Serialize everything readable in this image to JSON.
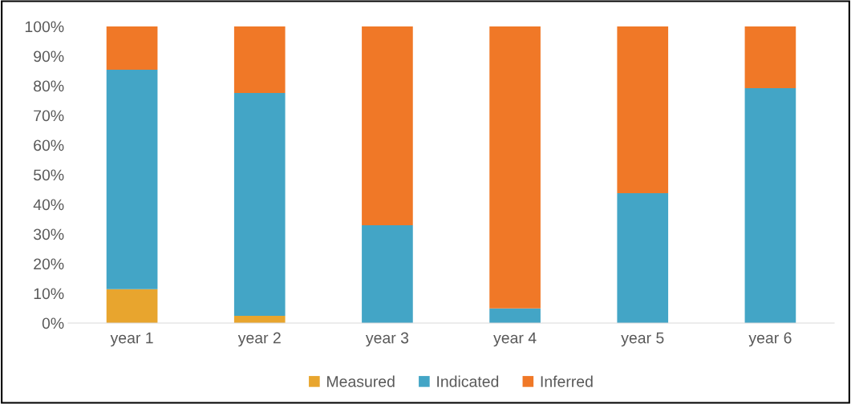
{
  "chart_data": {
    "type": "bar",
    "stacked": true,
    "categories": [
      "year 1",
      "year 2",
      "year 3",
      "year 4",
      "year 5",
      "year 6"
    ],
    "series": [
      {
        "name": "Measured",
        "color": "#e8a52e",
        "values": [
          11.4,
          2.4,
          0,
          0,
          0,
          0
        ]
      },
      {
        "name": "Indicated",
        "color": "#43a5c6",
        "values": [
          74,
          75.2,
          33,
          4.9,
          43.8,
          79.2
        ]
      },
      {
        "name": "Inferred",
        "color": "#f07827",
        "values": [
          14.6,
          22.4,
          67,
          95.1,
          56.2,
          20.8
        ]
      }
    ],
    "ylim": [
      0,
      100
    ],
    "yticks": [
      {
        "value": 0,
        "label": "0%"
      },
      {
        "value": 10,
        "label": "10%"
      },
      {
        "value": 20,
        "label": "20%"
      },
      {
        "value": 30,
        "label": "30%"
      },
      {
        "value": 40,
        "label": "40%"
      },
      {
        "value": 50,
        "label": "50%"
      },
      {
        "value": 60,
        "label": "60%"
      },
      {
        "value": 70,
        "label": "70%"
      },
      {
        "value": 80,
        "label": "80%"
      },
      {
        "value": 90,
        "label": "90%"
      },
      {
        "value": 100,
        "label": "100%"
      }
    ],
    "grid": false,
    "legend": "bottom"
  }
}
